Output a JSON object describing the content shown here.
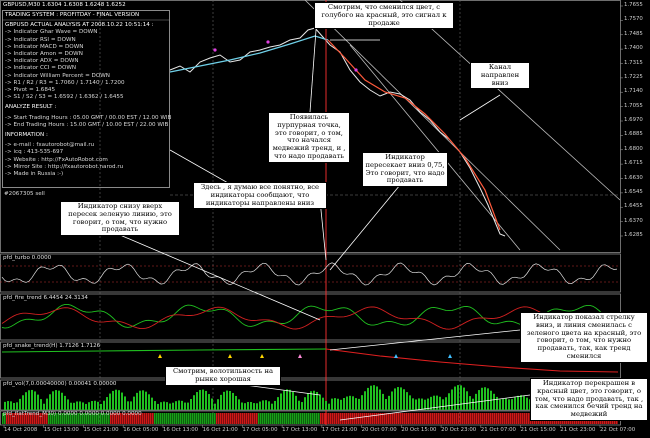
{
  "main_panel": {
    "header": "GBPUSD,M30 1.6304 1.6308 1.6248 1.6252",
    "title": "TRADING SYSTEM : PROFITDAY - FINAL VERSION",
    "analysis_title": "GBPUSD ACTUAL ANALYSIS AT 2008.10.22 10:51:14 :",
    "analysis_lines": [
      "-> Indicator Ghar Wave = DOWN",
      "-> Indicator RSI = DOWN",
      "-> Indicator MACD = DOWN",
      "-> Indicator Amon = DOWN",
      "-> Indicator ADX = DOWN",
      "-> Indicator CCI = DOWN",
      "-> Indicator William Percent = DOWN",
      "-> R1 / R2 / R3 = 1.7060 / 1.7140 / 1.7200",
      "-> Pivot = 1.6845",
      "-> S1 / S2 / S3 = 1.6592 / 1.6362 / 1.6455"
    ],
    "result_title": "ANALYZE RESULT :",
    "hours": [
      "-> Start Trading Hours : 05.00 GMT / 00.00 EST / 12.00 WIB",
      "-> End Trading Hours : 15.00 GMT / 10.00 EST / 22.00 WIB"
    ],
    "info_title": "INFORMATION :",
    "info": [
      "-> e-mail : fxautorobot@mail.ru",
      "-> icq : 413-535-697",
      "-> Website : http://FxAutoRobot.com",
      "-> Mirror Site : http://fxautorobot.narod.ru",
      "-> Made in Russia :-)"
    ],
    "order_label": "#2067305 sell"
  },
  "price_axis": [
    "1.7655",
    "1.7570",
    "1.7485",
    "1.7400",
    "1.7315",
    "1.7225",
    "1.7140",
    "1.7055",
    "1.6970",
    "1.6885",
    "1.6800",
    "1.6715",
    "1.6630",
    "1.6545",
    "1.6455",
    "1.6370",
    "1.6285"
  ],
  "time_axis": [
    "14 Oct 2008",
    "15 Oct 13:00",
    "15 Oct 21:00",
    "16 Oct 05:00",
    "16 Oct 13:00",
    "16 Oct 21:00",
    "17 Oct 05:00",
    "17 Oct 13:00",
    "17 Oct 21:00",
    "20 Oct 07:00",
    "20 Oct 15:00",
    "20 Oct 23:00",
    "21 Oct 07:00",
    "21 Oct 15:00",
    "21 Oct 23:00",
    "22 Oct 07:00"
  ],
  "indicator_panels": [
    {
      "label": "pfd_turbo 0.0000"
    },
    {
      "label": "pfd_fire_trend 6.4454 24.3134"
    },
    {
      "label": "pfd_snake_trend(H) 1.7126 1.7126"
    },
    {
      "label": "pfd_vol(7,0.00040000) 0.00041 0.00000"
    },
    {
      "label": "pfd_flatTrend_M30) 0.0000 0.0000 0.0000 0.0000"
    }
  ],
  "annotations": [
    "Смотрим, что сменился цвет, с голубого на красный, это сигнал к продаже",
    "Канал направлен вниз",
    "Появилась пурпурная точка, это говорит, о том, что начался медвежий тренд, и , что надо продавать",
    "Здесь , я думаю все понятно, все индикаторы сообщают, что индикаторы направлены вниз",
    "Индикатор пересекает вниз 0,75, Это говорит, что надо продавать",
    "Индикатор снизу вверх пересек зеленую линию, это говорит, о том, что нужно продавать",
    "Индикатор показал стрелку вниз, и линия сменилась с зеленого цвета на красный, это говорит, о том, что нужно продавать, так, как тренд сменился",
    "Смотрим, волотильность на рынке хорошая",
    "Индикатор перекрашен в красный цвет, это говорит, о том, что надо продавать, так , как сменился бечий тренд на медвежий"
  ]
}
